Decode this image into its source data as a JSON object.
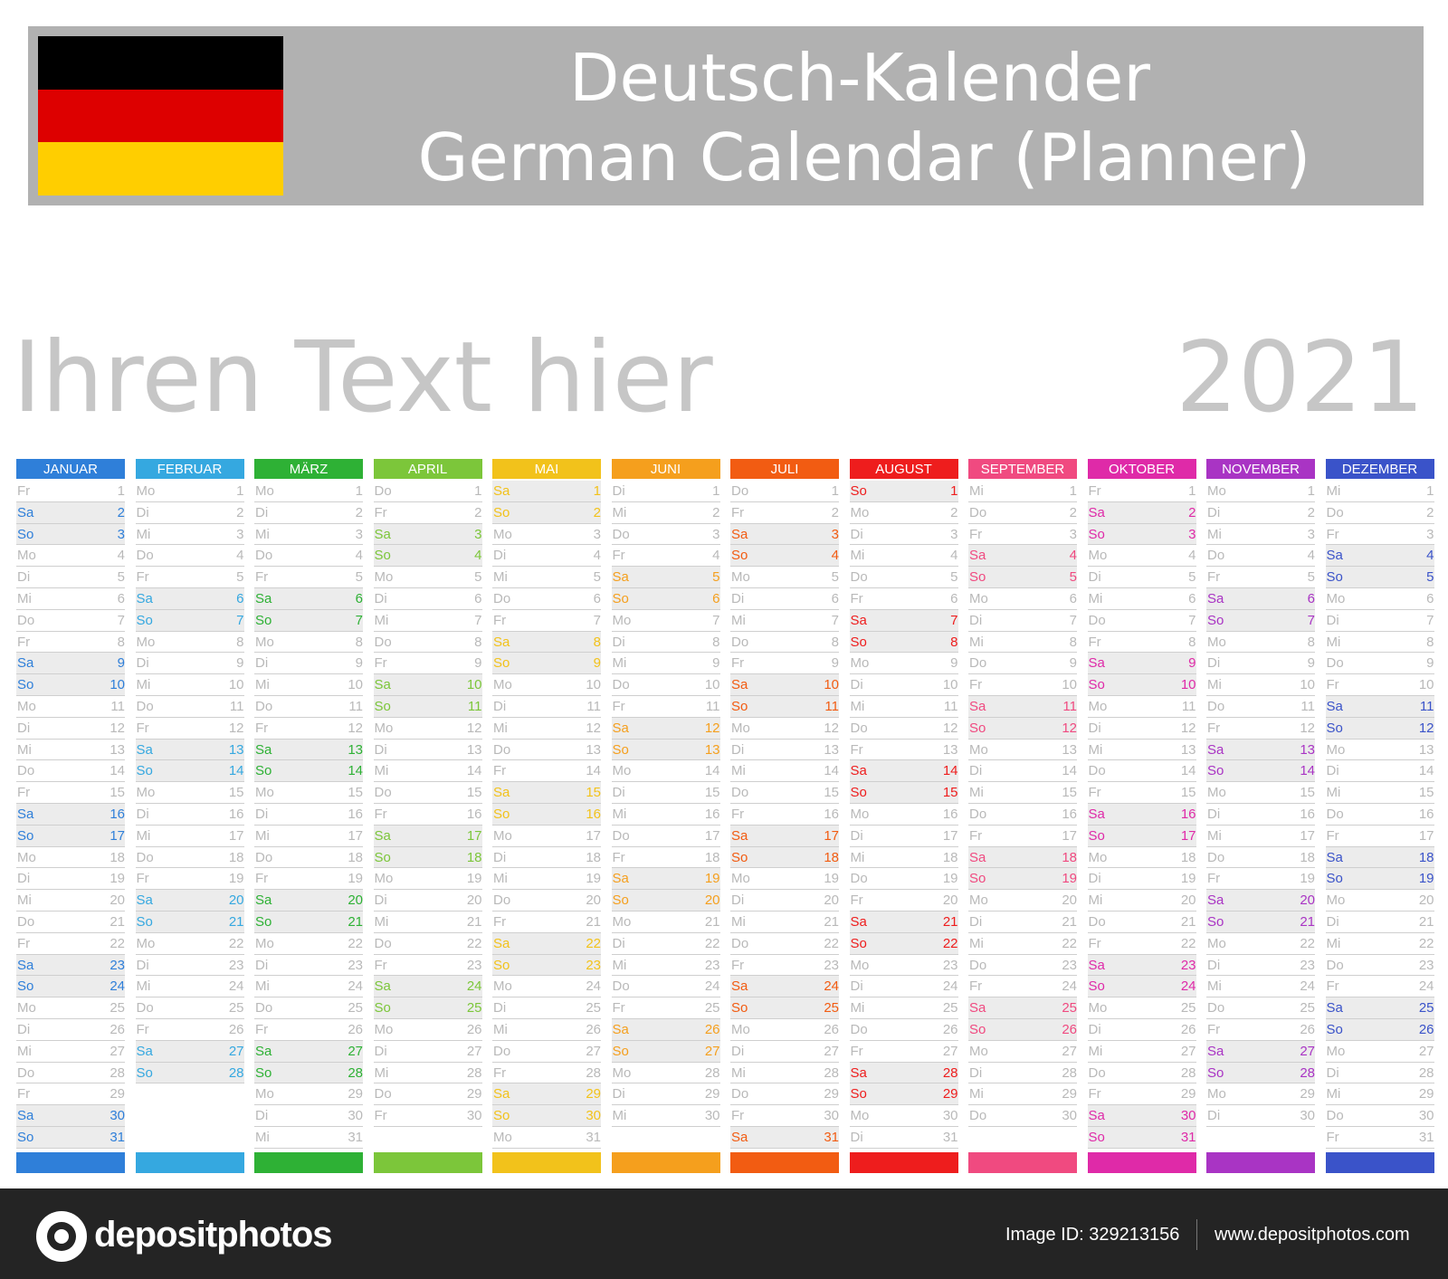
{
  "header": {
    "title_de": "Deutsch-Kalender",
    "title_en": "German Calendar (Planner)",
    "flag_colors": [
      "#000000",
      "#dd0000",
      "#ffce00"
    ]
  },
  "placeholder_text": "Ihren Text hier",
  "year": "2021",
  "weekday_abbr": [
    "Mo",
    "Di",
    "Mi",
    "Do",
    "Fr",
    "Sa",
    "So"
  ],
  "months": [
    {
      "name": "JANUAR",
      "color": "#2f7fd9",
      "days": 31,
      "start_weekday": 4
    },
    {
      "name": "FEBRUAR",
      "color": "#35a8e0",
      "days": 28,
      "start_weekday": 0
    },
    {
      "name": "MÄRZ",
      "color": "#2eb135",
      "days": 31,
      "start_weekday": 0
    },
    {
      "name": "APRIL",
      "color": "#7cc63a",
      "days": 30,
      "start_weekday": 3
    },
    {
      "name": "MAI",
      "color": "#f2c21b",
      "days": 31,
      "start_weekday": 5
    },
    {
      "name": "JUNI",
      "color": "#f59f1d",
      "days": 30,
      "start_weekday": 1
    },
    {
      "name": "JULI",
      "color": "#f25c12",
      "days": 31,
      "start_weekday": 3
    },
    {
      "name": "AUGUST",
      "color": "#ee1d1d",
      "days": 31,
      "start_weekday": 6
    },
    {
      "name": "SEPTEMBER",
      "color": "#f04a80",
      "days": 30,
      "start_weekday": 2
    },
    {
      "name": "OKTOBER",
      "color": "#df2aa8",
      "days": 31,
      "start_weekday": 4
    },
    {
      "name": "NOVEMBER",
      "color": "#a934c4",
      "days": 30,
      "start_weekday": 0
    },
    {
      "name": "DEZEMBER",
      "color": "#3a53c9",
      "days": 31,
      "start_weekday": 2
    }
  ],
  "footer": {
    "brand": "depositphotos",
    "image_id": "Image ID: 329213156",
    "site": "www.depositphotos.com"
  }
}
